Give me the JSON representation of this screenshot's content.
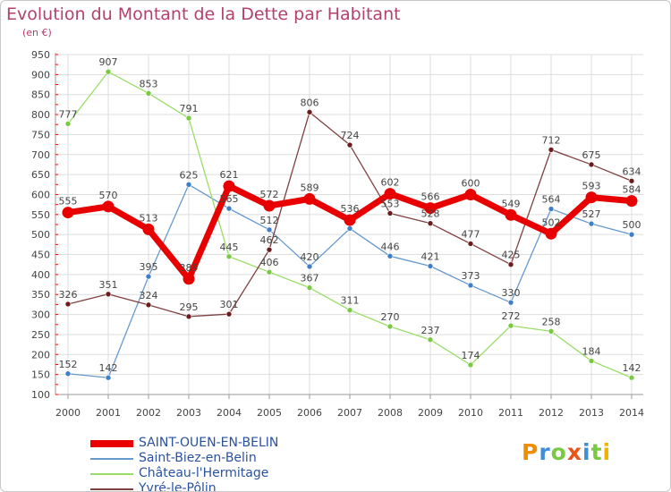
{
  "header": {
    "title": "Evolution du Montant de la Dette par Habitant",
    "subtitle": "(en €)"
  },
  "logo": {
    "text": "Proxiti"
  },
  "colors": {
    "title": "#b2416b",
    "legend_text": "#2a52a0",
    "grid": "#dddddd",
    "axis_tick_red": "#ff0000",
    "label_text": "#444444"
  },
  "chart_data": {
    "type": "line",
    "title": "Evolution du Montant de la Dette par Habitant",
    "subtitle": "(en €)",
    "x": [
      "2000",
      "2001",
      "2002",
      "2003",
      "2004",
      "2005",
      "2006",
      "2007",
      "2008",
      "2009",
      "2010",
      "2011",
      "2012",
      "2013",
      "2014"
    ],
    "ylim": [
      100,
      950
    ],
    "yticks": [
      100,
      150,
      200,
      250,
      300,
      350,
      400,
      450,
      500,
      550,
      600,
      650,
      700,
      750,
      800,
      850,
      900,
      950
    ],
    "grid": true,
    "legend_position": "bottom-left",
    "series": [
      {
        "name": "SAINT-OUEN-EN-BELIN",
        "color": "#e80000",
        "marker_color": "#e80000",
        "emphasis": true,
        "values": [
          555,
          570,
          513,
          389,
          621,
          572,
          589,
          536,
          602,
          566,
          600,
          549,
          502,
          593,
          584
        ],
        "labels": [
          "555",
          "570",
          "513",
          "389",
          "621",
          "572",
          "589",
          "536",
          "602",
          "566",
          "600",
          "549",
          "502",
          "593",
          "584"
        ]
      },
      {
        "name": "Saint-Biez-en-Belin",
        "color": "#6699cc",
        "marker_color": "#3f7fc7",
        "emphasis": false,
        "values": [
          152,
          142,
          395,
          625,
          565,
          512,
          420,
          515,
          446,
          421,
          373,
          330,
          564,
          527,
          500
        ],
        "labels": [
          "152",
          "142",
          "395",
          "625",
          "565",
          "512",
          "420",
          "",
          "446",
          "421",
          "373",
          "330",
          "564",
          "527",
          "500"
        ]
      },
      {
        "name": "Château-l'Hermitage",
        "color": "#99dd66",
        "marker_color": "#7ac943",
        "emphasis": false,
        "values": [
          777,
          907,
          853,
          791,
          445,
          406,
          367,
          311,
          270,
          237,
          174,
          272,
          258,
          184,
          142
        ],
        "labels": [
          "777",
          "907",
          "853",
          "791",
          "445",
          "406",
          "367",
          "311",
          "270",
          "237",
          "174",
          "272",
          "258",
          "184",
          "142"
        ]
      },
      {
        "name": "Yvré-le-Pôlin",
        "color": "#804040",
        "marker_color": "#6b1d1d",
        "emphasis": false,
        "values": [
          326,
          351,
          324,
          295,
          301,
          462,
          806,
          724,
          553,
          528,
          477,
          425,
          712,
          675,
          634
        ],
        "labels": [
          "326",
          "351",
          "324",
          "295",
          "301",
          "462",
          "806",
          "724",
          "553",
          "528",
          "477",
          "425",
          "712",
          "675",
          "634"
        ]
      }
    ]
  }
}
